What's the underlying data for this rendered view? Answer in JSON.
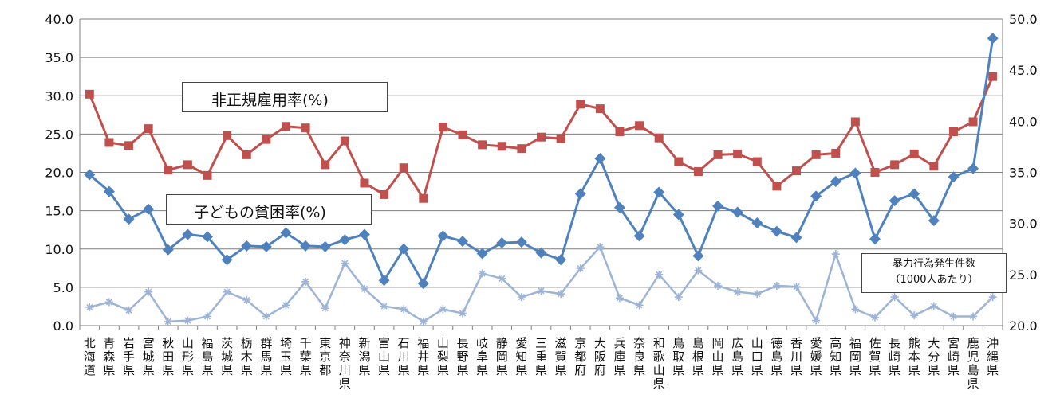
{
  "chart_data": {
    "type": "line",
    "categories": [
      "北海道",
      "青森県",
      "岩手県",
      "宮城県",
      "秋田県",
      "山形県",
      "福島県",
      "茨城県",
      "栃木県",
      "群馬県",
      "埼玉県",
      "千葉県",
      "東京都",
      "神奈川県",
      "新潟県",
      "富山県",
      "石川県",
      "福井県",
      "山梨県",
      "長野県",
      "岐阜県",
      "静岡県",
      "愛知県",
      "三重県",
      "滋賀県",
      "京都府",
      "大阪府",
      "兵庫県",
      "奈良県",
      "和歌山県",
      "鳥取県",
      "島根県",
      "岡山県",
      "広島県",
      "山口県",
      "徳島県",
      "香川県",
      "愛媛県",
      "高知県",
      "福岡県",
      "佐賀県",
      "長崎県",
      "熊本県",
      "大分県",
      "宮崎県",
      "鹿児島県",
      "沖縄県"
    ],
    "y_left": {
      "min": 0,
      "max": 40,
      "step": 5,
      "ticks": [
        "0.0",
        "5.0",
        "10.0",
        "15.0",
        "20.0",
        "25.0",
        "30.0",
        "35.0",
        "40.0"
      ]
    },
    "y_right": {
      "min": 20,
      "max": 50,
      "step": 5,
      "ticks": [
        "20.0",
        "25.0",
        "30.0",
        "35.0",
        "40.0",
        "45.0",
        "50.0"
      ]
    },
    "grid": true,
    "series": [
      {
        "name": "非正規雇用率(%)",
        "axis": "left",
        "color": "#c0504d",
        "marker": "square",
        "values": [
          30.2,
          23.9,
          23.5,
          25.7,
          20.3,
          21.0,
          19.6,
          24.8,
          22.3,
          24.3,
          26.0,
          25.8,
          21.0,
          24.1,
          18.6,
          17.1,
          20.6,
          16.6,
          25.9,
          24.9,
          23.6,
          23.4,
          23.1,
          24.6,
          24.4,
          28.9,
          28.3,
          25.3,
          26.1,
          24.5,
          21.4,
          20.1,
          22.3,
          22.4,
          21.4,
          18.2,
          20.2,
          22.3,
          22.5,
          26.6,
          20.0,
          21.0,
          22.4,
          20.8,
          25.3,
          26.6,
          32.5
        ]
      },
      {
        "name": "子どもの貧困率(%)",
        "axis": "left",
        "color": "#4f81bd",
        "marker": "diamond",
        "values": [
          19.7,
          17.5,
          13.9,
          15.2,
          9.9,
          11.9,
          11.6,
          8.6,
          10.4,
          10.3,
          12.1,
          10.4,
          10.3,
          11.2,
          11.9,
          5.9,
          10.0,
          5.5,
          11.7,
          11.0,
          9.4,
          10.8,
          10.9,
          9.5,
          8.6,
          17.2,
          21.8,
          15.4,
          11.7,
          17.4,
          14.5,
          9.1,
          15.6,
          14.8,
          13.4,
          12.3,
          11.5,
          16.9,
          18.8,
          19.9,
          11.3,
          16.3,
          17.2,
          13.7,
          19.4,
          20.5,
          37.5
        ]
      },
      {
        "name": "暴力行為発生件数 （1000人あたり）",
        "axis": "right",
        "color": "#9db4d6",
        "marker": "star",
        "values": [
          21.8,
          22.3,
          21.5,
          23.3,
          20.4,
          20.5,
          20.9,
          23.3,
          22.5,
          20.9,
          22.0,
          24.3,
          21.7,
          26.1,
          23.6,
          21.9,
          21.6,
          20.4,
          21.6,
          21.2,
          25.1,
          24.6,
          22.8,
          23.4,
          23.1,
          25.6,
          27.7,
          22.7,
          22.0,
          25.0,
          22.8,
          25.4,
          23.9,
          23.3,
          23.1,
          23.9,
          23.8,
          20.5,
          27.0,
          21.6,
          20.8,
          22.8,
          21.0,
          21.9,
          20.9,
          20.9,
          22.8
        ]
      }
    ]
  },
  "legend": {
    "nonreg": "非正規雇用率(%)",
    "child": "子どもの貧困率(%)",
    "violence_line1": "暴力行為発生件数",
    "violence_line2": "（1000人あたり）"
  }
}
